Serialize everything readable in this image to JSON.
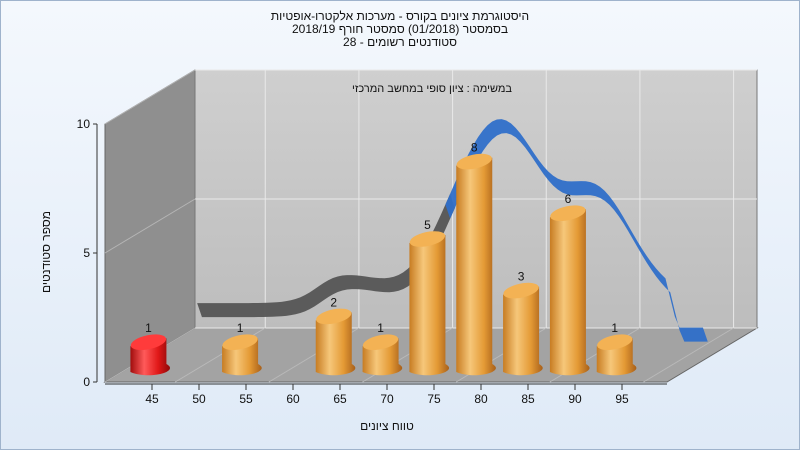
{
  "chart_data": {
    "type": "bar",
    "title_lines": [
      "היסטוגרמת ציונים בקורס - מערכות אלקטרו-אופטיות",
      "בסמסטר  (01/2018)  סמסטר חורף  2018/19",
      "סטודנטים רשומים - 28"
    ],
    "subtitle": "במשימה : ציון סופי במחשב המרכזי",
    "xlabel": "טווח ציונים",
    "ylabel": "מספר סטודנטים",
    "x_ticks": [
      "45",
      "50",
      "55",
      "60",
      "65",
      "70",
      "75",
      "80",
      "85",
      "90",
      "95"
    ],
    "y_ticks": [
      "0",
      "5",
      "10"
    ],
    "ylim": [
      0,
      10
    ],
    "categories": [
      "45",
      "55",
      "65",
      "70",
      "75",
      "80",
      "85",
      "90",
      "95"
    ],
    "values": [
      1,
      1,
      2,
      1,
      5,
      8,
      3,
      6,
      1
    ],
    "bar_colors": [
      "#e01818",
      "#e8a13c",
      "#e8a13c",
      "#e8a13c",
      "#e8a13c",
      "#e8a13c",
      "#e8a13c",
      "#e8a13c",
      "#e8a13c"
    ],
    "curve_colors": [
      "#555555",
      "#2f6fc9"
    ],
    "grid": true
  }
}
